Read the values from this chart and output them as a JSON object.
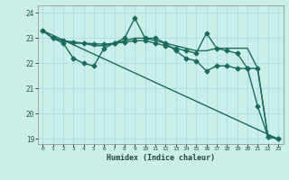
{
  "xlabel": "Humidex (Indice chaleur)",
  "background_color": "#cceee8",
  "grid_color": "#aadddd",
  "line_color": "#1a6b5a",
  "xlim": [
    -0.5,
    23.5
  ],
  "ylim": [
    18.8,
    24.3
  ],
  "yticks": [
    19,
    20,
    21,
    22,
    23,
    24
  ],
  "xticks": [
    0,
    1,
    2,
    3,
    4,
    5,
    6,
    7,
    8,
    9,
    10,
    11,
    12,
    13,
    14,
    15,
    16,
    17,
    18,
    19,
    20,
    21,
    22,
    23
  ],
  "series": [
    {
      "x": [
        0,
        1,
        2,
        3,
        4,
        5,
        6,
        7,
        8,
        9,
        10,
        11,
        12,
        13,
        14,
        15,
        16,
        17,
        18,
        19,
        20,
        21,
        22,
        23
      ],
      "y": [
        23.3,
        23.0,
        22.8,
        22.2,
        22.0,
        21.9,
        22.6,
        22.8,
        23.0,
        23.8,
        23.0,
        23.0,
        22.8,
        22.5,
        22.2,
        22.1,
        21.7,
        21.9,
        21.9,
        21.8,
        21.8,
        20.3,
        19.1,
        19.0
      ],
      "marker": "D",
      "markersize": 2.5,
      "linewidth": 1.0
    },
    {
      "x": [
        0,
        1,
        2,
        3,
        4,
        5,
        6,
        7,
        8,
        9,
        10,
        11,
        12,
        13,
        14,
        15,
        16,
        17,
        18,
        19,
        20,
        21,
        22,
        23
      ],
      "y": [
        23.3,
        23.0,
        22.9,
        22.8,
        22.8,
        22.7,
        22.7,
        22.8,
        22.9,
        23.0,
        23.0,
        22.9,
        22.8,
        22.7,
        22.6,
        22.5,
        22.5,
        22.6,
        22.6,
        22.6,
        22.6,
        21.8,
        19.1,
        19.0
      ],
      "marker": null,
      "markersize": 0,
      "linewidth": 1.0
    },
    {
      "x": [
        0,
        23
      ],
      "y": [
        23.3,
        19.0
      ],
      "marker": null,
      "markersize": 0,
      "linewidth": 1.0
    },
    {
      "x": [
        0,
        1,
        2,
        3,
        4,
        5,
        6,
        7,
        8,
        9,
        10,
        11,
        12,
        13,
        14,
        15,
        16,
        17,
        18,
        19,
        20,
        21,
        22,
        23
      ],
      "y": [
        23.3,
        23.0,
        22.9,
        22.85,
        22.8,
        22.78,
        22.76,
        22.8,
        22.84,
        22.9,
        22.9,
        22.8,
        22.7,
        22.6,
        22.5,
        22.4,
        23.2,
        22.6,
        22.5,
        22.4,
        21.8,
        21.8,
        19.1,
        19.0
      ],
      "marker": "D",
      "markersize": 2.5,
      "linewidth": 1.0
    }
  ]
}
